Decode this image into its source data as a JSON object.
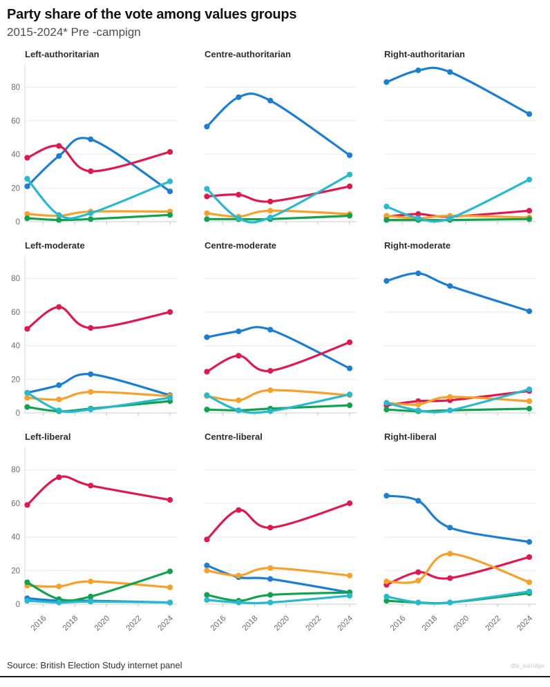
{
  "header": {
    "title": "Party share of the vote among values groups",
    "subtitle": "2015-2024* Pre -campign"
  },
  "footer": {
    "source": "Source: British Election Study internet panel",
    "watermark": "@p_surridge"
  },
  "chart_data": {
    "type": "line",
    "layout": "3x3 small multiples",
    "x": [
      2015,
      2017,
      2019,
      2024
    ],
    "x_ticks": [
      "2016",
      "2018",
      "2020",
      "2022",
      "2024"
    ],
    "x_tick_years": [
      2016,
      2018,
      2020,
      2022,
      2024
    ],
    "xlim": [
      2014.85,
      2024.35
    ],
    "ylim": [
      0,
      92
    ],
    "y_ticks": [
      0,
      20,
      40,
      60,
      80
    ],
    "grid": true,
    "legend": "none",
    "series_meta": [
      {
        "key": "blue",
        "color": "#1b7ed3"
      },
      {
        "key": "red",
        "color": "#e1184e"
      },
      {
        "key": "orange",
        "color": "#f5a12c"
      },
      {
        "key": "green",
        "color": "#10a24e"
      },
      {
        "key": "cyan",
        "color": "#27b9ce"
      }
    ],
    "panels": [
      {
        "title": "Left-authoritarian",
        "series": {
          "blue": [
            21,
            39,
            49,
            18
          ],
          "red": [
            38,
            45,
            30,
            41.5
          ],
          "orange": [
            4.5,
            3.5,
            6,
            6
          ],
          "green": [
            2,
            1,
            1.5,
            4
          ],
          "cyan": [
            25.5,
            4,
            5,
            24
          ]
        }
      },
      {
        "title": "Centre-authoritarian",
        "series": {
          "blue": [
            56.5,
            74,
            72,
            39.5
          ],
          "red": [
            15,
            16,
            12,
            21
          ],
          "orange": [
            5,
            3,
            6.5,
            4.5
          ],
          "green": [
            1.5,
            1.5,
            1.5,
            3.5
          ],
          "cyan": [
            19.5,
            2,
            2.5,
            28
          ]
        }
      },
      {
        "title": "Right-authoritarian",
        "series": {
          "blue": [
            83,
            90,
            89,
            64
          ],
          "red": [
            3,
            4.5,
            3,
            6.5
          ],
          "orange": [
            3.5,
            2,
            3.5,
            2.5
          ],
          "green": [
            1,
            1,
            1,
            1.5
          ],
          "cyan": [
            9,
            2,
            2,
            25
          ]
        }
      },
      {
        "title": "Left-moderate",
        "series": {
          "blue": [
            12,
            16.5,
            23,
            10.5
          ],
          "red": [
            50,
            63,
            50.5,
            60
          ],
          "orange": [
            9,
            8,
            12.5,
            10
          ],
          "green": [
            3.5,
            1,
            2.5,
            7
          ],
          "cyan": [
            12,
            1.5,
            2,
            9
          ]
        }
      },
      {
        "title": "Centre-moderate",
        "series": {
          "blue": [
            45,
            48.5,
            49.5,
            26.5
          ],
          "red": [
            24.5,
            34,
            25,
            42
          ],
          "orange": [
            10,
            7.5,
            13.5,
            10.5
          ],
          "green": [
            2,
            1.5,
            2.5,
            4.5
          ],
          "cyan": [
            10.5,
            1.5,
            1,
            11
          ]
        }
      },
      {
        "title": "Right-moderate",
        "series": {
          "blue": [
            78.5,
            83,
            75.5,
            60.5
          ],
          "red": [
            4.5,
            7,
            7.5,
            13
          ],
          "orange": [
            6,
            5,
            9.5,
            7
          ],
          "green": [
            2,
            1,
            1.5,
            2.5
          ],
          "cyan": [
            6,
            1.5,
            1.5,
            14
          ]
        }
      },
      {
        "title": "Left-liberal",
        "series": {
          "blue": [
            3.5,
            2,
            2,
            1
          ],
          "red": [
            59,
            75.5,
            70.5,
            62
          ],
          "orange": [
            11,
            10.5,
            13.5,
            10
          ],
          "green": [
            13,
            3,
            4.5,
            19.5
          ],
          "cyan": [
            2,
            1,
            1.5,
            1
          ]
        }
      },
      {
        "title": "Centre-liberal",
        "series": {
          "blue": [
            23,
            16,
            15,
            7
          ],
          "red": [
            38.5,
            56,
            45.5,
            60
          ],
          "orange": [
            20,
            17,
            21.5,
            17
          ],
          "green": [
            5.5,
            2,
            5.5,
            7
          ],
          "cyan": [
            2.5,
            1,
            1,
            5
          ]
        }
      },
      {
        "title": "Right-liberal",
        "series": {
          "blue": [
            64.5,
            61.5,
            45.5,
            37
          ],
          "red": [
            11.5,
            19,
            15.5,
            28
          ],
          "orange": [
            13.5,
            14,
            30,
            13
          ],
          "green": [
            2,
            1,
            1,
            6.5
          ],
          "cyan": [
            4.5,
            1,
            1,
            7.5
          ]
        }
      }
    ]
  }
}
